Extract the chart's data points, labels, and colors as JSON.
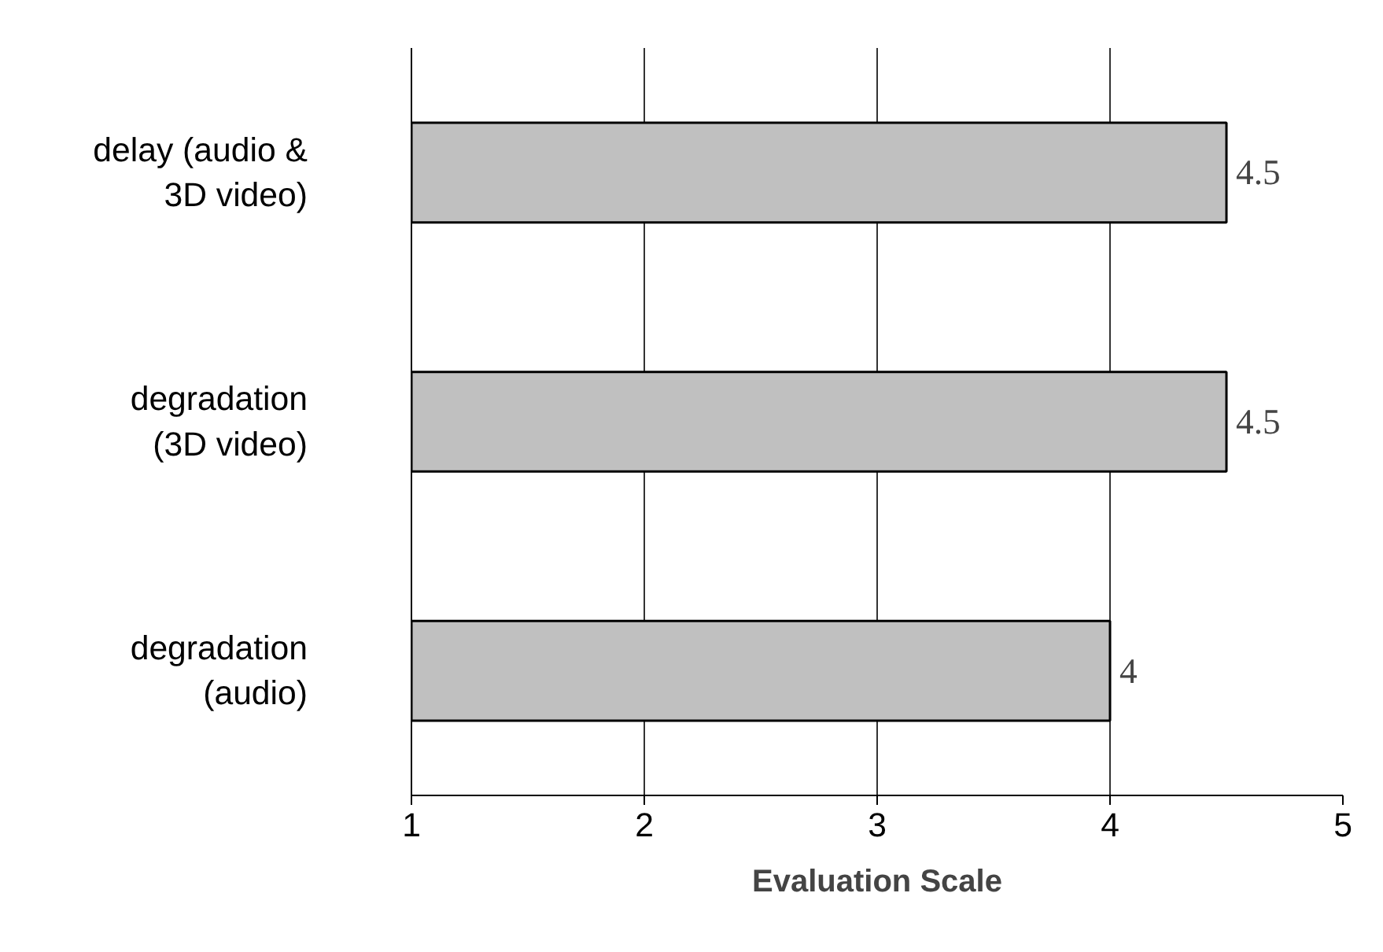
{
  "chart_data": {
    "type": "bar",
    "orientation": "horizontal",
    "categories": [
      "delay (audio & 3D video)",
      "degradation (3D video)",
      "degradation (audio)"
    ],
    "values": [
      4.5,
      4.5,
      4
    ],
    "color": "#c0c0c0",
    "xlabel": "Evaluation Scale",
    "xlim": [
      1,
      5
    ],
    "xticks": [
      1,
      2,
      3,
      4,
      5
    ],
    "grid": "x",
    "data_labels": true
  }
}
